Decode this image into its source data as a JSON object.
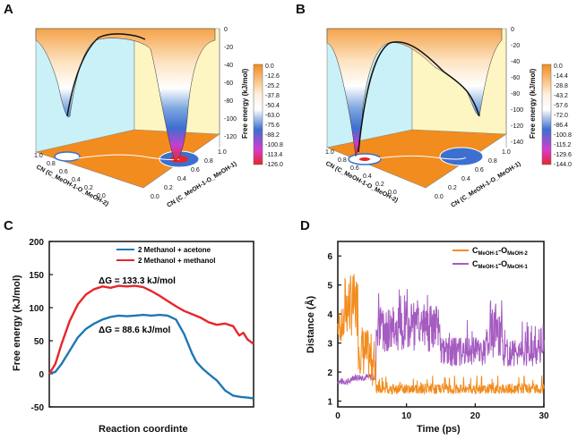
{
  "panels": {
    "A": {
      "label": "A",
      "z_title": "Free energy (kJ/mol)",
      "z_ticks": [
        "0",
        "-20",
        "-40",
        "-60",
        "-80",
        "-100",
        "-120"
      ],
      "colorbar": [
        "0.0",
        "-12.6",
        "-25.2",
        "-37.8",
        "-50.4",
        "-63.0",
        "-75.6",
        "-88.2",
        "-100.8",
        "-113.4",
        "-126.0"
      ],
      "axis_left": "CN (C_MeOH-1-O_MeOH-2)",
      "axis_right": "CN (C_MeOH-1-O_MeOH-1)",
      "left_ticks": [
        "1.0",
        "0.8",
        "0.6",
        "0.4",
        "0.2",
        "0.0"
      ],
      "right_ticks": [
        "0.0",
        "0.2",
        "0.4",
        "0.6",
        "0.8",
        "1.0"
      ]
    },
    "B": {
      "label": "B",
      "z_title": "Free energy (kJ/mol)",
      "z_ticks": [
        "0",
        "-20",
        "-40",
        "-60",
        "-80",
        "-100",
        "-120",
        "-140"
      ],
      "colorbar": [
        "0.0",
        "-14.4",
        "-28.8",
        "-43.2",
        "-57.6",
        "-72.0",
        "-86.4",
        "-100.8",
        "-115.2",
        "-129.6",
        "-144.0"
      ],
      "axis_left": "CN (C_MeOH-1-O_MeOH-2)",
      "axis_right": "CN (C_MeOH-1-O_MeOH-1)",
      "left_ticks": [
        "1.0",
        "0.8",
        "0.6",
        "0.4",
        "0.2",
        "0.0"
      ],
      "right_ticks": [
        "0.0",
        "0.2",
        "0.4",
        "0.6",
        "0.8",
        "1.0"
      ]
    },
    "C": {
      "label": "C"
    },
    "D": {
      "label": "D"
    }
  },
  "colors": {
    "orange": "#f28c1e",
    "blue": "#1f77b4",
    "red": "#e8262b",
    "purple": "#a55cc0",
    "cyan_wall": "#c9f1f7",
    "yellow_wall": "#fdf6c2"
  },
  "chart_data": [
    {
      "id": "C",
      "type": "line",
      "title": "",
      "xlabel": "Reaction coordinte",
      "ylabel": "Free energy (kJ/mol)",
      "ylim": [
        -50,
        200
      ],
      "yticks": [
        "200",
        "150",
        "100",
        "50",
        "0",
        "-50"
      ],
      "legend_position": "top-right",
      "annotations": [
        {
          "label": "ΔG = 133.3 kJ/mol",
          "x": 0.45,
          "y": 150
        },
        {
          "label": "ΔG = 88.6 kJ/mol",
          "x": 0.45,
          "y": 60
        }
      ],
      "series": [
        {
          "name": "2 Methanol + acetone",
          "color": "#1f77b4",
          "x": [
            0,
            0.03,
            0.06,
            0.1,
            0.14,
            0.18,
            0.22,
            0.26,
            0.3,
            0.34,
            0.38,
            0.42,
            0.46,
            0.5,
            0.54,
            0.58,
            0.62,
            0.66,
            0.7,
            0.72,
            0.75,
            0.78,
            0.82,
            0.86,
            0.9,
            0.94,
            0.97,
            1.0
          ],
          "y": [
            0,
            3,
            15,
            35,
            55,
            68,
            76,
            82,
            86,
            88,
            87,
            88,
            89,
            88,
            89,
            88,
            82,
            60,
            30,
            18,
            8,
            0,
            -10,
            -25,
            -33,
            -35,
            -36,
            -37
          ]
        },
        {
          "name": "2 Methanol + methanol",
          "color": "#e8262b",
          "x": [
            0,
            0.03,
            0.06,
            0.1,
            0.14,
            0.18,
            0.22,
            0.26,
            0.3,
            0.34,
            0.38,
            0.42,
            0.46,
            0.5,
            0.54,
            0.58,
            0.62,
            0.66,
            0.7,
            0.74,
            0.78,
            0.82,
            0.86,
            0.9,
            0.93,
            0.95,
            0.97,
            1.0
          ],
          "y": [
            0,
            15,
            45,
            80,
            105,
            120,
            128,
            132,
            130,
            133,
            132,
            133,
            131,
            125,
            118,
            110,
            102,
            95,
            90,
            85,
            78,
            74,
            76,
            72,
            58,
            62,
            52,
            45
          ]
        }
      ]
    },
    {
      "id": "D",
      "type": "line",
      "title": "",
      "xlabel": "Time (ps)",
      "ylabel": "Distance (Å)",
      "xlim": [
        0,
        30
      ],
      "ylim": [
        0.8,
        6.5
      ],
      "xticks": [
        "0",
        "10",
        "20",
        "30"
      ],
      "yticks": [
        "6",
        "5",
        "4",
        "3",
        "2",
        "1"
      ],
      "legend_position": "top-right",
      "series": [
        {
          "name": "C_MeOH-1-O_MeOH-2",
          "legend_main": "C",
          "legend_sub1": "MeOH-1",
          "legend_mid": "-O",
          "legend_sub2": "MeOH-2",
          "color": "#f28c1e"
        },
        {
          "name": "C_MeOH-1-O_MeOH-1",
          "legend_main": "C",
          "legend_sub1": "MeOH-1",
          "legend_mid": "-O",
          "legend_sub2": "MeOH-1",
          "color": "#a55cc0"
        }
      ]
    }
  ]
}
